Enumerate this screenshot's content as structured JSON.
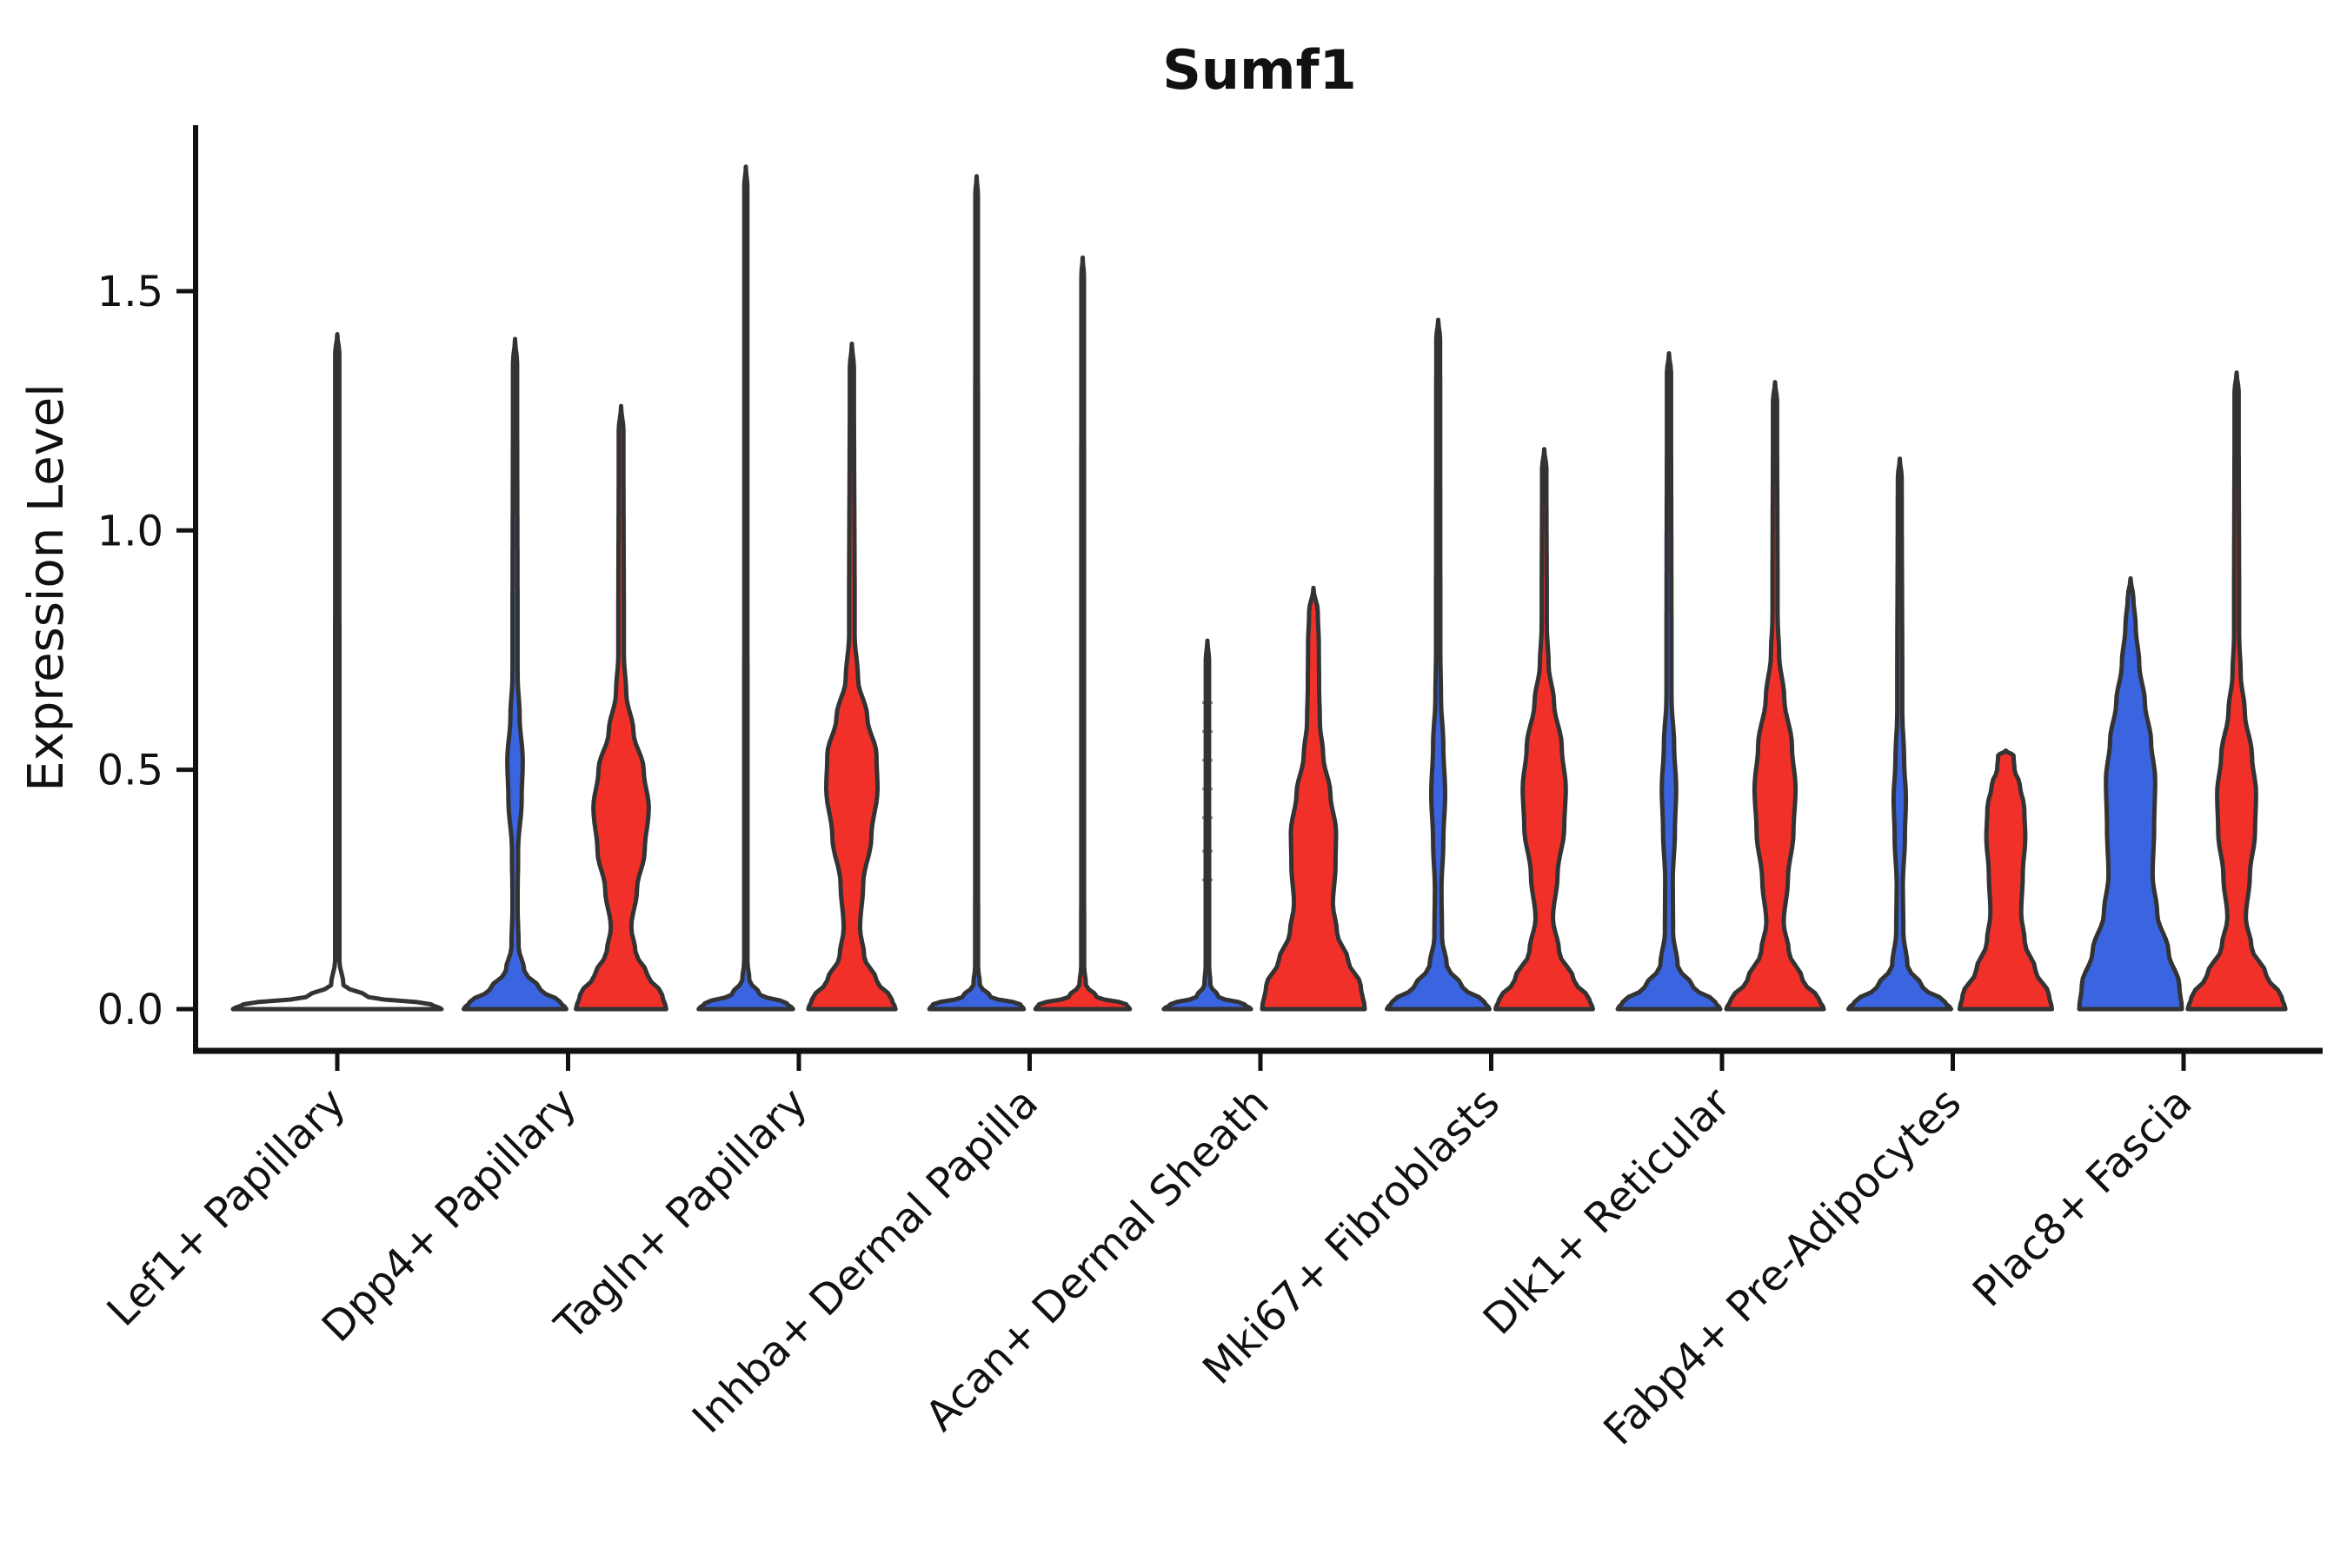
{
  "title": "Sumf1",
  "y_axis": {
    "label": "Expression Level",
    "tick_labels": [
      "0.0",
      "0.5",
      "1.0",
      "1.5"
    ],
    "tick_values": [
      0.0,
      0.5,
      1.0,
      1.5
    ]
  },
  "colors": {
    "blue": "#3A64E0",
    "red": "#F13129",
    "outline": "#333333",
    "axis": "#111111",
    "none_fill": "#ffffff"
  },
  "chart_data": {
    "type": "violin",
    "title": "Sumf1",
    "ylabel": "Expression Level",
    "ylim": [
      0,
      1.85
    ],
    "yticks": [
      0.0,
      0.5,
      1.0,
      1.5
    ],
    "ytick_labels": [
      "0.0",
      "0.5",
      "1.0",
      "1.5"
    ],
    "grid": false,
    "legend": "none",
    "categories": [
      "Lef1+ Papillary",
      "Dpp4+ Papillary",
      "Tagln+ Papillary",
      "Inhba+ Dermal Papilla",
      "Acan+ Dermal Sheath",
      "Mki67+ Fibroblasts",
      "Dlk1+ Reticular",
      "Fabp4+ Pre-Adipocytes",
      "Plac8+ Fascia"
    ],
    "series_colors": {
      "blue": "#3A64E0",
      "red": "#F13129"
    },
    "groups": [
      {
        "category": "Lef1+ Papillary",
        "violins": [
          {
            "side": "center",
            "color": "none",
            "max": 1.41,
            "profile": [
              [
                0,
                1
              ],
              [
                0.01,
                0.9
              ],
              [
                0.025,
                0.3
              ],
              [
                0.05,
                0.06
              ],
              [
                0.1,
                0.021
              ],
              [
                1.37,
                0.02
              ],
              [
                1.41,
                0
              ]
            ]
          }
        ]
      },
      {
        "category": "Dpp4+ Papillary",
        "violins": [
          {
            "side": "left",
            "color": "blue",
            "max": 1.4,
            "profile": [
              [
                0,
                1
              ],
              [
                0.015,
                0.88
              ],
              [
                0.04,
                0.5
              ],
              [
                0.08,
                0.18
              ],
              [
                0.13,
                0.07
              ],
              [
                0.22,
                0.05
              ],
              [
                0.33,
                0.06
              ],
              [
                0.44,
                0.13
              ],
              [
                0.52,
                0.15
              ],
              [
                0.61,
                0.09
              ],
              [
                0.7,
                0.05
              ],
              [
                1.35,
                0.04
              ],
              [
                1.4,
                0
              ]
            ]
          },
          {
            "side": "right",
            "color": "red",
            "max": 1.26,
            "profile": [
              [
                0,
                0.88
              ],
              [
                0.03,
                0.8
              ],
              [
                0.07,
                0.52
              ],
              [
                0.12,
                0.28
              ],
              [
                0.17,
                0.2
              ],
              [
                0.25,
                0.31
              ],
              [
                0.33,
                0.46
              ],
              [
                0.42,
                0.54
              ],
              [
                0.5,
                0.44
              ],
              [
                0.58,
                0.24
              ],
              [
                0.66,
                0.1
              ],
              [
                0.74,
                0.055
              ],
              [
                1.21,
                0.045
              ],
              [
                1.26,
                0
              ]
            ]
          }
        ]
      },
      {
        "category": "Tagln+ Papillary",
        "violins": [
          {
            "side": "left",
            "color": "blue",
            "max": 1.76,
            "profile": [
              [
                0,
                0.92
              ],
              [
                0.012,
                0.8
              ],
              [
                0.03,
                0.28
              ],
              [
                0.06,
                0.07
              ],
              [
                0.1,
                0.032
              ],
              [
                1.72,
                0.03
              ],
              [
                1.76,
                0
              ]
            ]
          },
          {
            "side": "right",
            "color": "red",
            "max": 1.39,
            "profile": [
              [
                0,
                0.85
              ],
              [
                0.02,
                0.78
              ],
              [
                0.06,
                0.48
              ],
              [
                0.11,
                0.24
              ],
              [
                0.17,
                0.16
              ],
              [
                0.26,
                0.22
              ],
              [
                0.36,
                0.38
              ],
              [
                0.46,
                0.5
              ],
              [
                0.53,
                0.48
              ],
              [
                0.61,
                0.3
              ],
              [
                0.69,
                0.12
              ],
              [
                0.78,
                0.055
              ],
              [
                1.34,
                0.04
              ],
              [
                1.39,
                0
              ]
            ]
          }
        ]
      },
      {
        "category": "Inhba+ Dermal Papilla",
        "violins": [
          {
            "side": "left",
            "color": "blue",
            "max": 1.74,
            "profile": [
              [
                0,
                0.92
              ],
              [
                0.01,
                0.85
              ],
              [
                0.025,
                0.28
              ],
              [
                0.05,
                0.065
              ],
              [
                0.09,
                0.028
              ],
              [
                1.7,
                0.026
              ],
              [
                1.74,
                0
              ]
            ]
          },
          {
            "side": "right",
            "color": "red",
            "max": 1.57,
            "profile": [
              [
                0,
                0.92
              ],
              [
                0.01,
                0.85
              ],
              [
                0.025,
                0.28
              ],
              [
                0.05,
                0.065
              ],
              [
                0.09,
                0.028
              ],
              [
                1.53,
                0.026
              ],
              [
                1.57,
                0
              ]
            ]
          }
        ]
      },
      {
        "category": "Acan+ Dermal Sheath",
        "violins": [
          {
            "side": "left",
            "color": "blue",
            "max": 0.77,
            "profile": [
              [
                0,
                0.85
              ],
              [
                0.01,
                0.72
              ],
              [
                0.025,
                0.22
              ],
              [
                0.05,
                0.06
              ],
              [
                0.09,
                0.034
              ],
              [
                0.73,
                0.032
              ],
              [
                0.77,
                0
              ]
            ]
          },
          {
            "side": "right",
            "color": "red",
            "max": 0.88,
            "profile": [
              [
                0,
                1
              ],
              [
                0.05,
                0.92
              ],
              [
                0.1,
                0.68
              ],
              [
                0.16,
                0.46
              ],
              [
                0.22,
                0.38
              ],
              [
                0.3,
                0.43
              ],
              [
                0.37,
                0.44
              ],
              [
                0.45,
                0.33
              ],
              [
                0.53,
                0.19
              ],
              [
                0.6,
                0.125
              ],
              [
                0.68,
                0.11
              ],
              [
                0.76,
                0.105
              ],
              [
                0.83,
                0.085
              ],
              [
                0.88,
                0
              ]
            ]
          }
        ]
      },
      {
        "category": "Mki67+ Fibroblasts",
        "violins": [
          {
            "side": "left",
            "color": "blue",
            "max": 1.44,
            "profile": [
              [
                0,
                1
              ],
              [
                0.015,
                0.9
              ],
              [
                0.045,
                0.48
              ],
              [
                0.09,
                0.17
              ],
              [
                0.15,
                0.075
              ],
              [
                0.25,
                0.065
              ],
              [
                0.35,
                0.1
              ],
              [
                0.45,
                0.135
              ],
              [
                0.55,
                0.1
              ],
              [
                0.65,
                0.055
              ],
              [
                0.75,
                0.042
              ],
              [
                1.4,
                0.038
              ],
              [
                1.44,
                0
              ]
            ]
          },
          {
            "side": "right",
            "color": "red",
            "max": 1.17,
            "profile": [
              [
                0,
                0.95
              ],
              [
                0.02,
                0.88
              ],
              [
                0.06,
                0.58
              ],
              [
                0.12,
                0.29
              ],
              [
                0.19,
                0.17
              ],
              [
                0.28,
                0.26
              ],
              [
                0.38,
                0.39
              ],
              [
                0.46,
                0.42
              ],
              [
                0.55,
                0.34
              ],
              [
                0.64,
                0.19
              ],
              [
                0.72,
                0.085
              ],
              [
                0.8,
                0.05
              ],
              [
                1.13,
                0.042
              ],
              [
                1.17,
                0
              ]
            ]
          }
        ]
      },
      {
        "category": "Dlk1+ Reticular",
        "violins": [
          {
            "side": "left",
            "color": "blue",
            "max": 1.37,
            "profile": [
              [
                0,
                1
              ],
              [
                0.015,
                0.9
              ],
              [
                0.045,
                0.48
              ],
              [
                0.09,
                0.17
              ],
              [
                0.16,
                0.08
              ],
              [
                0.27,
                0.075
              ],
              [
                0.37,
                0.115
              ],
              [
                0.46,
                0.14
              ],
              [
                0.55,
                0.1
              ],
              [
                0.65,
                0.05
              ],
              [
                1.33,
                0.04
              ],
              [
                1.37,
                0
              ]
            ]
          },
          {
            "side": "right",
            "color": "red",
            "max": 1.31,
            "profile": [
              [
                0,
                0.95
              ],
              [
                0.02,
                0.86
              ],
              [
                0.06,
                0.54
              ],
              [
                0.12,
                0.27
              ],
              [
                0.18,
                0.17
              ],
              [
                0.27,
                0.25
              ],
              [
                0.37,
                0.36
              ],
              [
                0.46,
                0.4
              ],
              [
                0.55,
                0.33
              ],
              [
                0.65,
                0.18
              ],
              [
                0.74,
                0.08
              ],
              [
                0.82,
                0.05
              ],
              [
                1.27,
                0.04
              ],
              [
                1.31,
                0
              ]
            ]
          }
        ]
      },
      {
        "category": "Fabp4+ Pre-Adipocytes",
        "violins": [
          {
            "side": "left",
            "color": "blue",
            "max": 1.15,
            "profile": [
              [
                0,
                1
              ],
              [
                0.015,
                0.88
              ],
              [
                0.045,
                0.45
              ],
              [
                0.09,
                0.15
              ],
              [
                0.16,
                0.07
              ],
              [
                0.26,
                0.06
              ],
              [
                0.36,
                0.1
              ],
              [
                0.44,
                0.12
              ],
              [
                0.52,
                0.085
              ],
              [
                0.62,
                0.05
              ],
              [
                1.11,
                0.038
              ],
              [
                1.15,
                0
              ]
            ]
          },
          {
            "side": "right",
            "color": "red",
            "max": 0.54,
            "profile": [
              [
                0,
                0.9
              ],
              [
                0.03,
                0.84
              ],
              [
                0.08,
                0.58
              ],
              [
                0.14,
                0.37
              ],
              [
                0.2,
                0.3
              ],
              [
                0.28,
                0.33
              ],
              [
                0.36,
                0.38
              ],
              [
                0.42,
                0.36
              ],
              [
                0.47,
                0.27
              ],
              [
                0.5,
                0.17
              ],
              [
                0.53,
                0.15
              ],
              [
                0.54,
                0
              ]
            ]
          }
        ]
      },
      {
        "category": "Plac8+ Fascia",
        "violins": [
          {
            "side": "left",
            "color": "blue",
            "max": 0.9,
            "profile": [
              [
                0,
                1
              ],
              [
                0.05,
                0.95
              ],
              [
                0.12,
                0.74
              ],
              [
                0.2,
                0.52
              ],
              [
                0.28,
                0.43
              ],
              [
                0.38,
                0.46
              ],
              [
                0.48,
                0.48
              ],
              [
                0.56,
                0.4
              ],
              [
                0.64,
                0.28
              ],
              [
                0.72,
                0.17
              ],
              [
                0.8,
                0.1
              ],
              [
                0.86,
                0.055
              ],
              [
                0.9,
                0
              ]
            ]
          },
          {
            "side": "right",
            "color": "red",
            "max": 1.33,
            "profile": [
              [
                0,
                0.95
              ],
              [
                0.025,
                0.88
              ],
              [
                0.07,
                0.58
              ],
              [
                0.13,
                0.29
              ],
              [
                0.19,
                0.18
              ],
              [
                0.28,
                0.26
              ],
              [
                0.37,
                0.36
              ],
              [
                0.45,
                0.38
              ],
              [
                0.53,
                0.3
              ],
              [
                0.62,
                0.16
              ],
              [
                0.7,
                0.08
              ],
              [
                0.78,
                0.05
              ],
              [
                1.29,
                0.04
              ],
              [
                1.33,
                0
              ]
            ]
          }
        ]
      }
    ],
    "stipple_marks": {
      "category_index": 4,
      "side": "left",
      "values": [
        0.27,
        0.33,
        0.4,
        0.46,
        0.52,
        0.58,
        0.64
      ]
    }
  }
}
